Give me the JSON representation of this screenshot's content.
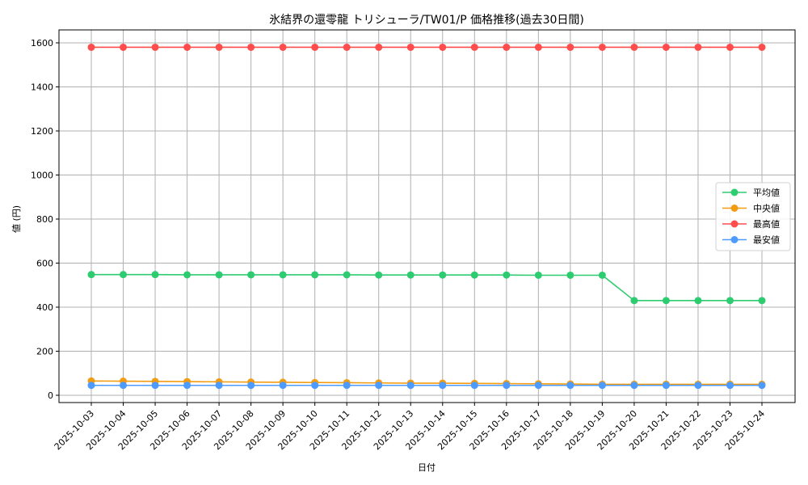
{
  "chart_data": {
    "type": "line",
    "title": "氷結界の還零龍 トリシューラ/TW01/P 価格推移(過去30日間)",
    "xlabel": "日付",
    "ylabel": "値 (円)",
    "ylim": [
      -35,
      1660
    ],
    "yticks": [
      0,
      200,
      400,
      600,
      800,
      1000,
      1200,
      1400,
      1600
    ],
    "grid": true,
    "legend_position": "center right",
    "categories": [
      "2025-10-03",
      "2025-10-04",
      "2025-10-05",
      "2025-10-06",
      "2025-10-07",
      "2025-10-08",
      "2025-10-09",
      "2025-10-10",
      "2025-10-11",
      "2025-10-12",
      "2025-10-13",
      "2025-10-14",
      "2025-10-15",
      "2025-10-16",
      "2025-10-17",
      "2025-10-18",
      "2025-10-19",
      "2025-10-20",
      "2025-10-21",
      "2025-10-22",
      "2025-10-23",
      "2025-10-24"
    ],
    "series": [
      {
        "name": "平均値",
        "color": "#2ecc71",
        "values": [
          548,
          548,
          548,
          547,
          547,
          547,
          547,
          547,
          547,
          546,
          546,
          546,
          546,
          546,
          545,
          545,
          545,
          430,
          430,
          430,
          430,
          430
        ]
      },
      {
        "name": "中央値",
        "color": "#f39c12",
        "values": [
          65,
          64,
          63,
          62,
          61,
          60,
          59,
          58,
          57,
          56,
          55,
          55,
          54,
          53,
          52,
          51,
          50,
          50,
          50,
          50,
          50,
          50
        ]
      },
      {
        "name": "最高値",
        "color": "#ff4d4d",
        "values": [
          1580,
          1580,
          1580,
          1580,
          1580,
          1580,
          1580,
          1580,
          1580,
          1580,
          1580,
          1580,
          1580,
          1580,
          1580,
          1580,
          1580,
          1580,
          1580,
          1580,
          1580,
          1580
        ]
      },
      {
        "name": "最安値",
        "color": "#4d9bff",
        "values": [
          45,
          45,
          45,
          45,
          45,
          45,
          45,
          45,
          45,
          45,
          45,
          45,
          45,
          45,
          45,
          45,
          45,
          45,
          45,
          45,
          45,
          45
        ]
      }
    ]
  }
}
